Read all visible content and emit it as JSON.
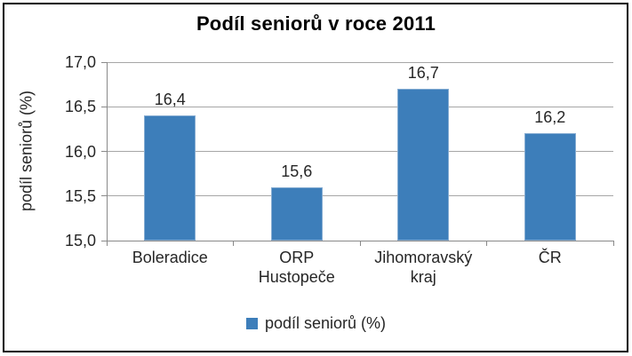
{
  "window": {
    "background": "#ffffff",
    "border_color": "#000000"
  },
  "chart_data": {
    "type": "bar",
    "title": "Podíl seniorů v roce 2011",
    "categories": [
      "Boleradice",
      "ORP Hustopeče",
      "Jihomoravský kraj",
      "ČR"
    ],
    "category_lines": [
      [
        "Boleradice"
      ],
      [
        "ORP",
        "Hustopeče"
      ],
      [
        "Jihomoravský",
        "kraj"
      ],
      [
        "ČR"
      ]
    ],
    "series": [
      {
        "name": "podíl seniorů (%)",
        "values": [
          16.4,
          15.6,
          16.7,
          16.2
        ],
        "value_labels": [
          "16,4",
          "15,6",
          "16,7",
          "16,2"
        ]
      }
    ],
    "xlabel": "",
    "ylabel": "podíl seniorů (%)",
    "ylim": [
      15.0,
      17.0
    ],
    "ytick_step": 0.5,
    "ytick_labels": [
      "15,0",
      "15,5",
      "16,0",
      "16,5",
      "17,0"
    ],
    "grid": true,
    "decimal_separator": ",",
    "legend": {
      "position": "bottom",
      "entries": [
        "podíl seniorů (%)"
      ]
    },
    "colors": {
      "bar": "#3d7eba",
      "bar_border": "#85acd2",
      "gridline": "#a6a6a6",
      "axis": "#898989",
      "text": "#262626",
      "title": "#000000"
    }
  }
}
